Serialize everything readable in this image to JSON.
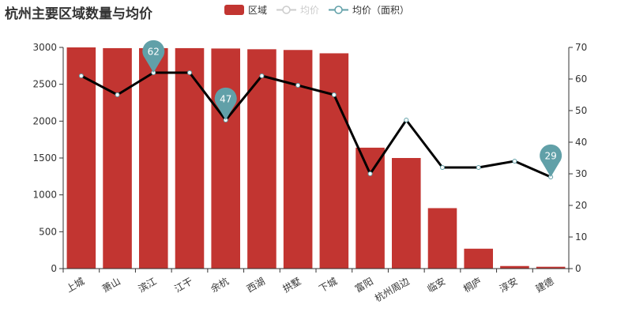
{
  "title": "杭州主要区域数量与均价",
  "legend": [
    {
      "key": "bar",
      "label": "区域",
      "state": "active"
    },
    {
      "key": "price",
      "label": "均价",
      "state": "inactive"
    },
    {
      "key": "area_price",
      "label": "均价（面积）",
      "state": "active"
    }
  ],
  "colors": {
    "bar": "#c23531",
    "line": "#000000",
    "pin": "#61a0a8",
    "inactive": "#cccccc",
    "axis": "#333333",
    "text": "#333333"
  },
  "chart_data": {
    "type": "bar",
    "title": "杭州主要区域数量与均价",
    "categories": [
      "上城",
      "萧山",
      "滨江",
      "江干",
      "余杭",
      "西湖",
      "拱墅",
      "下城",
      "富阳",
      "杭州周边",
      "临安",
      "桐庐",
      "淳安",
      "建德"
    ],
    "series": [
      {
        "name": "区域",
        "type": "bar",
        "axis": "left",
        "values": [
          3000,
          2990,
          2990,
          2990,
          2985,
          2975,
          2965,
          2920,
          1640,
          1500,
          820,
          270,
          35,
          25
        ]
      },
      {
        "name": "均价（面积）",
        "type": "line",
        "axis": "right",
        "values": [
          61,
          55,
          62,
          62,
          47,
          61,
          58,
          55,
          30,
          47,
          32,
          32,
          34,
          29
        ]
      }
    ],
    "y_left": {
      "min": 0,
      "max": 3000,
      "ticks": [
        0,
        500,
        1000,
        1500,
        2000,
        2500,
        3000
      ]
    },
    "y_right": {
      "min": 0,
      "max": 70,
      "ticks": [
        0,
        10,
        20,
        30,
        40,
        50,
        60,
        70
      ]
    },
    "markers": [
      {
        "category": "滨江",
        "value": 62,
        "label": "62"
      },
      {
        "category": "余杭",
        "value": 47,
        "label": "47"
      },
      {
        "category": "建德",
        "value": 29,
        "label": "29"
      }
    ],
    "grid": false,
    "legend_position": "top-center"
  }
}
